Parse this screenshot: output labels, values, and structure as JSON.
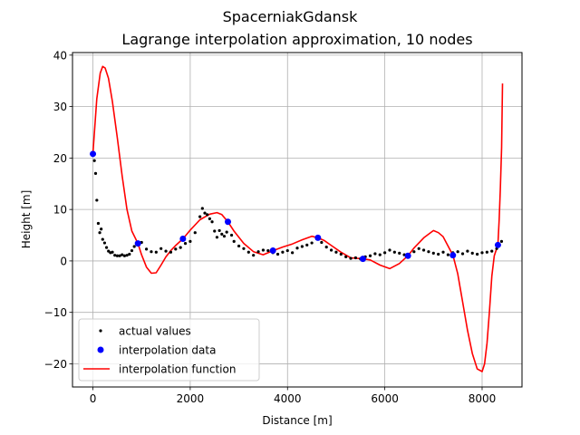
{
  "chart_data": {
    "type": "line",
    "suptitle": "SpacerniakGdansk",
    "title": "Lagrange interpolation approximation, 10 nodes",
    "xlabel": "Distance [m]",
    "ylabel": "Height [m]",
    "xlim": [
      -420,
      8820
    ],
    "ylim": [
      -24.5,
      40.5
    ],
    "xticks": [
      0,
      2000,
      4000,
      6000,
      8000
    ],
    "xtick_labels": [
      "0",
      "2000",
      "4000",
      "6000",
      "8000"
    ],
    "yticks": [
      -20,
      -10,
      0,
      10,
      20,
      30,
      40
    ],
    "ytick_labels": [
      "−20",
      "−10",
      "0",
      "10",
      "20",
      "30",
      "40"
    ],
    "grid": true,
    "legend_position": "lower-left",
    "colors": {
      "actual": "#000000",
      "nodes": "#0000ff",
      "curve": "#ff0000"
    },
    "series": [
      {
        "name": "actual values",
        "kind": "dots",
        "x": [
          0,
          30,
          55,
          80,
          110,
          140,
          170,
          200,
          240,
          280,
          320,
          360,
          400,
          450,
          500,
          550,
          600,
          650,
          700,
          750,
          800,
          850,
          900,
          950,
          1000,
          1100,
          1200,
          1300,
          1400,
          1500,
          1600,
          1700,
          1800,
          1900,
          2000,
          2100,
          2200,
          2250,
          2300,
          2350,
          2400,
          2450,
          2500,
          2550,
          2600,
          2650,
          2700,
          2750,
          2800,
          2850,
          2900,
          3000,
          3100,
          3200,
          3300,
          3400,
          3500,
          3600,
          3700,
          3800,
          3900,
          4000,
          4100,
          4200,
          4300,
          4400,
          4500,
          4600,
          4700,
          4800,
          4900,
          5000,
          5100,
          5200,
          5300,
          5400,
          5500,
          5600,
          5700,
          5800,
          5900,
          6000,
          6100,
          6200,
          6300,
          6400,
          6500,
          6600,
          6700,
          6800,
          6900,
          7000,
          7100,
          7200,
          7300,
          7400,
          7500,
          7600,
          7700,
          7800,
          7900,
          8000,
          8100,
          8200,
          8300,
          8350,
          8400
        ],
        "y": [
          20.8,
          19.5,
          17.0,
          11.8,
          7.3,
          5.5,
          6.2,
          4.2,
          3.5,
          2.6,
          1.9,
          1.6,
          1.7,
          1.1,
          1.0,
          1.0,
          1.2,
          1.0,
          1.1,
          1.3,
          2.0,
          2.8,
          3.4,
          3.2,
          3.6,
          2.3,
          1.8,
          1.7,
          2.4,
          1.9,
          1.7,
          2.3,
          2.6,
          3.4,
          3.8,
          5.5,
          8.6,
          10.2,
          9.3,
          9.0,
          8.2,
          7.6,
          5.8,
          4.6,
          5.9,
          5.2,
          4.8,
          5.6,
          7.5,
          5.0,
          3.8,
          2.9,
          2.4,
          1.7,
          1.1,
          1.8,
          2.1,
          2.0,
          1.6,
          1.3,
          1.7,
          2.0,
          1.6,
          2.5,
          2.8,
          3.1,
          3.5,
          4.3,
          3.6,
          2.7,
          2.1,
          1.7,
          1.3,
          0.8,
          0.5,
          0.6,
          0.4,
          0.8,
          1.0,
          1.4,
          1.2,
          1.6,
          2.1,
          1.7,
          1.5,
          1.2,
          1.0,
          1.8,
          2.4,
          2.1,
          1.8,
          1.5,
          1.3,
          1.7,
          1.2,
          1.6,
          1.8,
          1.4,
          1.9,
          1.5,
          1.3,
          1.6,
          1.7,
          1.9,
          2.4,
          3.1,
          3.8
        ]
      },
      {
        "name": "interpolation data",
        "kind": "nodes",
        "x": [
          0,
          925,
          1850,
          2775,
          3700,
          4625,
          5550,
          6475,
          7400,
          8325
        ],
        "y": [
          20.8,
          3.4,
          4.3,
          7.6,
          2.0,
          4.5,
          0.4,
          1.0,
          1.1,
          3.1
        ]
      },
      {
        "name": "interpolation function",
        "kind": "curve",
        "x": [
          0,
          80,
          150,
          200,
          250,
          320,
          400,
          500,
          600,
          700,
          800,
          925,
          1000,
          1100,
          1200,
          1300,
          1400,
          1500,
          1600,
          1700,
          1850,
          2000,
          2200,
          2400,
          2550,
          2650,
          2775,
          2900,
          3100,
          3300,
          3500,
          3700,
          3900,
          4100,
          4300,
          4500,
          4625,
          4750,
          4900,
          5100,
          5300,
          5550,
          5700,
          5900,
          6100,
          6300,
          6475,
          6600,
          6800,
          7000,
          7100,
          7200,
          7400,
          7500,
          7600,
          7700,
          7800,
          7900,
          8000,
          8050,
          8100,
          8150,
          8200,
          8250,
          8325,
          8350,
          8375,
          8400,
          8420
        ],
        "y": [
          20.8,
          31.5,
          36.5,
          37.8,
          37.5,
          35.5,
          31.0,
          24.0,
          16.5,
          10.0,
          5.8,
          3.4,
          1.2,
          -1.2,
          -2.4,
          -2.3,
          -0.8,
          0.8,
          2.0,
          3.0,
          4.3,
          6.0,
          8.0,
          9.1,
          9.4,
          9.0,
          7.6,
          5.8,
          3.4,
          1.8,
          1.2,
          2.0,
          2.7,
          3.3,
          4.1,
          4.8,
          4.5,
          4.0,
          3.0,
          1.7,
          0.6,
          0.4,
          0.2,
          -0.8,
          -1.5,
          -0.5,
          1.0,
          2.5,
          4.5,
          5.9,
          5.5,
          4.7,
          1.1,
          -2.5,
          -8.0,
          -13.5,
          -18.0,
          -21.0,
          -21.5,
          -20.0,
          -16.0,
          -10.0,
          -3.0,
          1.0,
          3.1,
          8.0,
          14.0,
          22.0,
          34.5
        ]
      }
    ]
  }
}
